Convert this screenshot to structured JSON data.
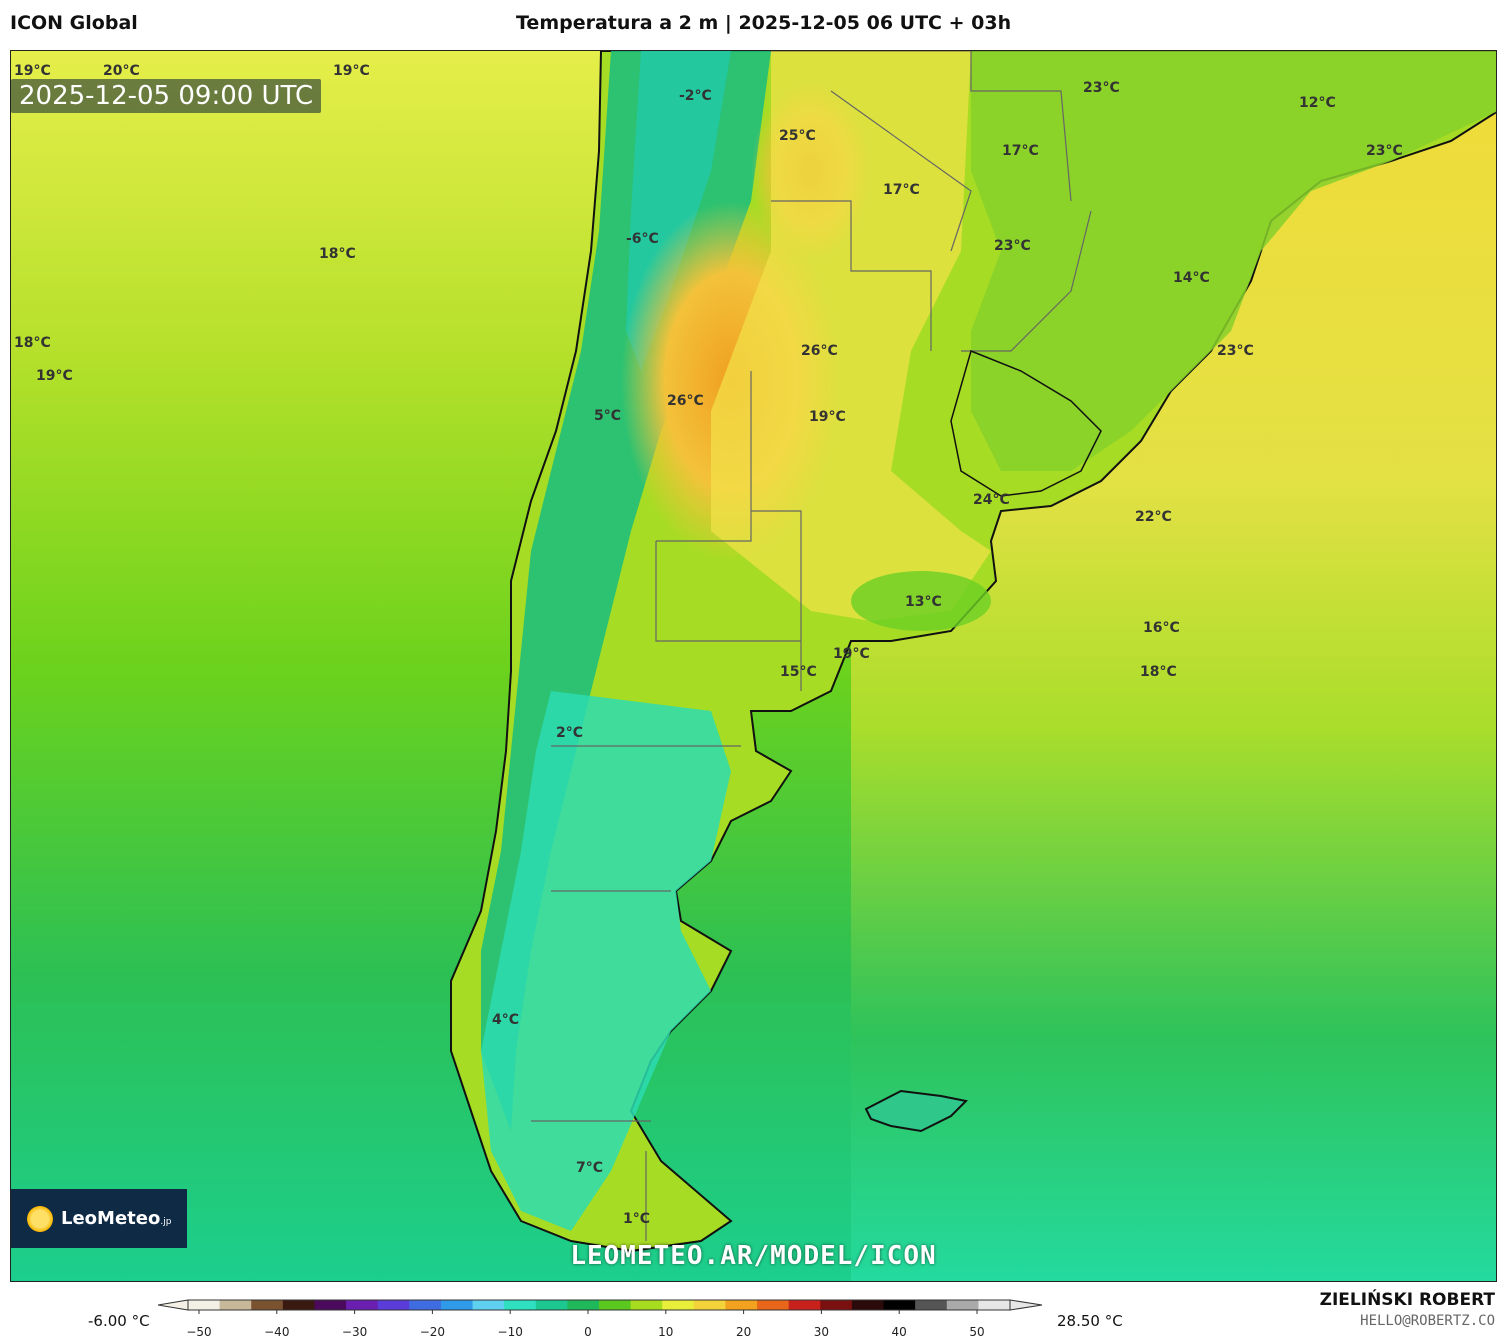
{
  "header": {
    "model": "ICON Global",
    "title": "Temperatura a 2 m | 2025-12-05 06 UTC + 03h"
  },
  "map": {
    "valid_time": "2025-12-05 09:00 UTC",
    "watermark": "LEOMETEO.AR/MODEL/ICON",
    "logo": {
      "name": "LeoMeteo",
      "suffix": ".jp"
    },
    "labels": [
      "19°C",
      "20°C",
      "19°C",
      "-2°C",
      "25°C",
      "23°C",
      "12°C",
      "17°C",
      "23°C",
      "17°C",
      "-6°C",
      "23°C",
      "18°C",
      "14°C",
      "18°C",
      "26°C",
      "23°C",
      "19°C",
      "26°C",
      "5°C",
      "19°C",
      "24°C",
      "22°C",
      "13°C",
      "16°C",
      "19°C",
      "15°C",
      "18°C",
      "2°C",
      "4°C",
      "7°C",
      "1°C"
    ]
  },
  "colorbar": {
    "min_label": "-6.00 °C",
    "max_label": "28.50 °C",
    "ticks": [
      "−50",
      "−40",
      "−30",
      "−20",
      "−10",
      "0",
      "10",
      "20",
      "30",
      "40",
      "50"
    ],
    "colors": [
      "#f5f0e6",
      "#c8b89a",
      "#7a5230",
      "#3a1a10",
      "#4b0a5c",
      "#6a1fb0",
      "#5a3cd8",
      "#3f6ce0",
      "#2f9ae8",
      "#5fd0f0",
      "#2ee0c0",
      "#1dc890",
      "#1fb85a",
      "#5ac81e",
      "#a8dc1e",
      "#e8ee3a",
      "#f4d23a",
      "#f2a21e",
      "#e8661a",
      "#c8201a",
      "#7a1010",
      "#2a0a0a",
      "#000000",
      "#555555",
      "#aaaaaa",
      "#e6e6e6"
    ]
  },
  "footer": {
    "author": "ZIELIŃSKI ROBERT",
    "email": "HELLO@ROBERTZ.CO"
  }
}
